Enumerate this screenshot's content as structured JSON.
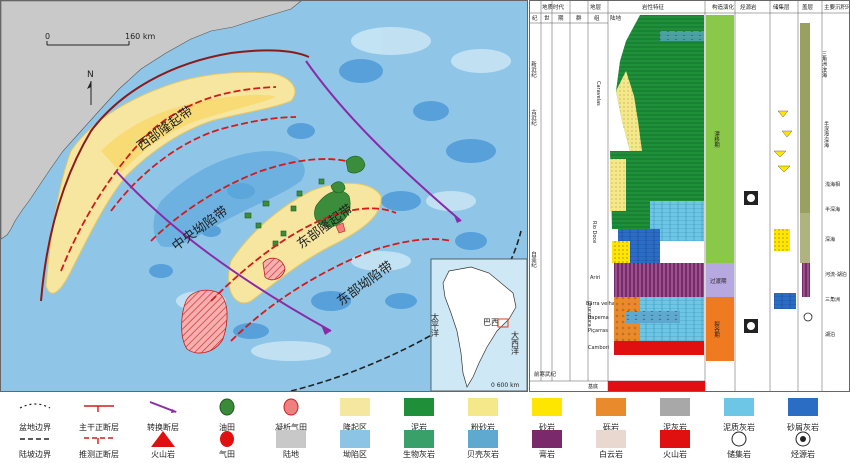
{
  "map": {
    "scale_start": "0",
    "scale_end": "160 km",
    "north": "N",
    "region_labels": [
      {
        "text": "西部隆起带",
        "kind": "uplift"
      },
      {
        "text": "中央坳陷带",
        "kind": "depression"
      },
      {
        "text": "东部隆起带",
        "kind": "uplift"
      },
      {
        "text": "东部坳陷带",
        "kind": "depression"
      }
    ],
    "inset": {
      "atlantic": "大西洋",
      "pacific": "太平洋",
      "country": "巴西",
      "scale": "0  600 km"
    }
  },
  "strat": {
    "headers": {
      "era": "地质时代",
      "formation": "地层",
      "lithology": "岩性特征",
      "tectonic": "构造演化",
      "source": "烃源岩",
      "reservoir": "储集层",
      "cap": "盖层",
      "environment": "主要沉积环境",
      "sub_era_1": "纪",
      "sub_era_2": "世",
      "sub_era_3": "期",
      "sub_form_1": "群",
      "sub_form_2": "组",
      "land": "陆地",
      "sea": "海洋"
    },
    "periods": [
      "新近纪",
      "古近纪",
      "白垩纪",
      "前寒武纪"
    ],
    "epochs": [
      "上新世",
      "中新世",
      "渐新世",
      "始新世",
      "古新世"
    ],
    "groups": [
      "Espírito",
      "Santo"
    ],
    "formations": [
      "Urucutuca",
      "Rio Doce",
      "Caravelas",
      "Ariri",
      "Barra velha",
      "Itapema",
      "Piçarras",
      "Cambori",
      "基底"
    ],
    "tectonic_stages": [
      "漂移期",
      "过渡期",
      "裂谷期"
    ],
    "environments": [
      "三角洲-滨海",
      "半深海-深海",
      "浅海相",
      "半深海",
      "深海",
      "河流-湖泊",
      "三角洲",
      "湖泊",
      "潟湖",
      "蒸发盐",
      "浅海",
      "陆相"
    ]
  },
  "legend": {
    "row1": [
      "盆地边界",
      "主干正断层",
      "转换断层",
      "油田",
      "凝析气田",
      "隆起区",
      "泥岩",
      "粉砂岩",
      "砂岩",
      "砾岩",
      "泥灰岩",
      "泥质灰岩",
      "砂屑灰岩"
    ],
    "row2": [
      "陆坡边界",
      "推测正断层",
      "火山岩",
      "气田",
      "陆地",
      "坳陷区",
      "生物灰岩",
      "贝壳灰岩",
      "膏岩",
      "白云岩",
      "火山岩",
      "储集岩",
      "烃源岩"
    ]
  },
  "colors": {
    "uplift": "#f6e7a0",
    "depression": "#8cc4e6",
    "deep": "#3c8fd2",
    "land": "#c8c8c8",
    "fault_main": "#d41a1a",
    "transform": "#8a2ba8",
    "basin_boundary": "#8b1a1a",
    "oil": "#3a8a3a",
    "gas": "#f08080",
    "mudstone": "#1f8f3a",
    "siltstone": "#f5e88a",
    "sandstone": "#ffe600",
    "conglomerate": "#e98a2c",
    "marl": "#a8a8a8",
    "argill_limestone": "#6ec6e6",
    "calcarenite": "#2b6cc4",
    "bio_limestone": "#3aa06a",
    "shell_limestone": "#5fa8d0",
    "gypsum": "#7a2a6a",
    "dolomite": "#e8d8d0",
    "volcanic": "#e01010"
  }
}
